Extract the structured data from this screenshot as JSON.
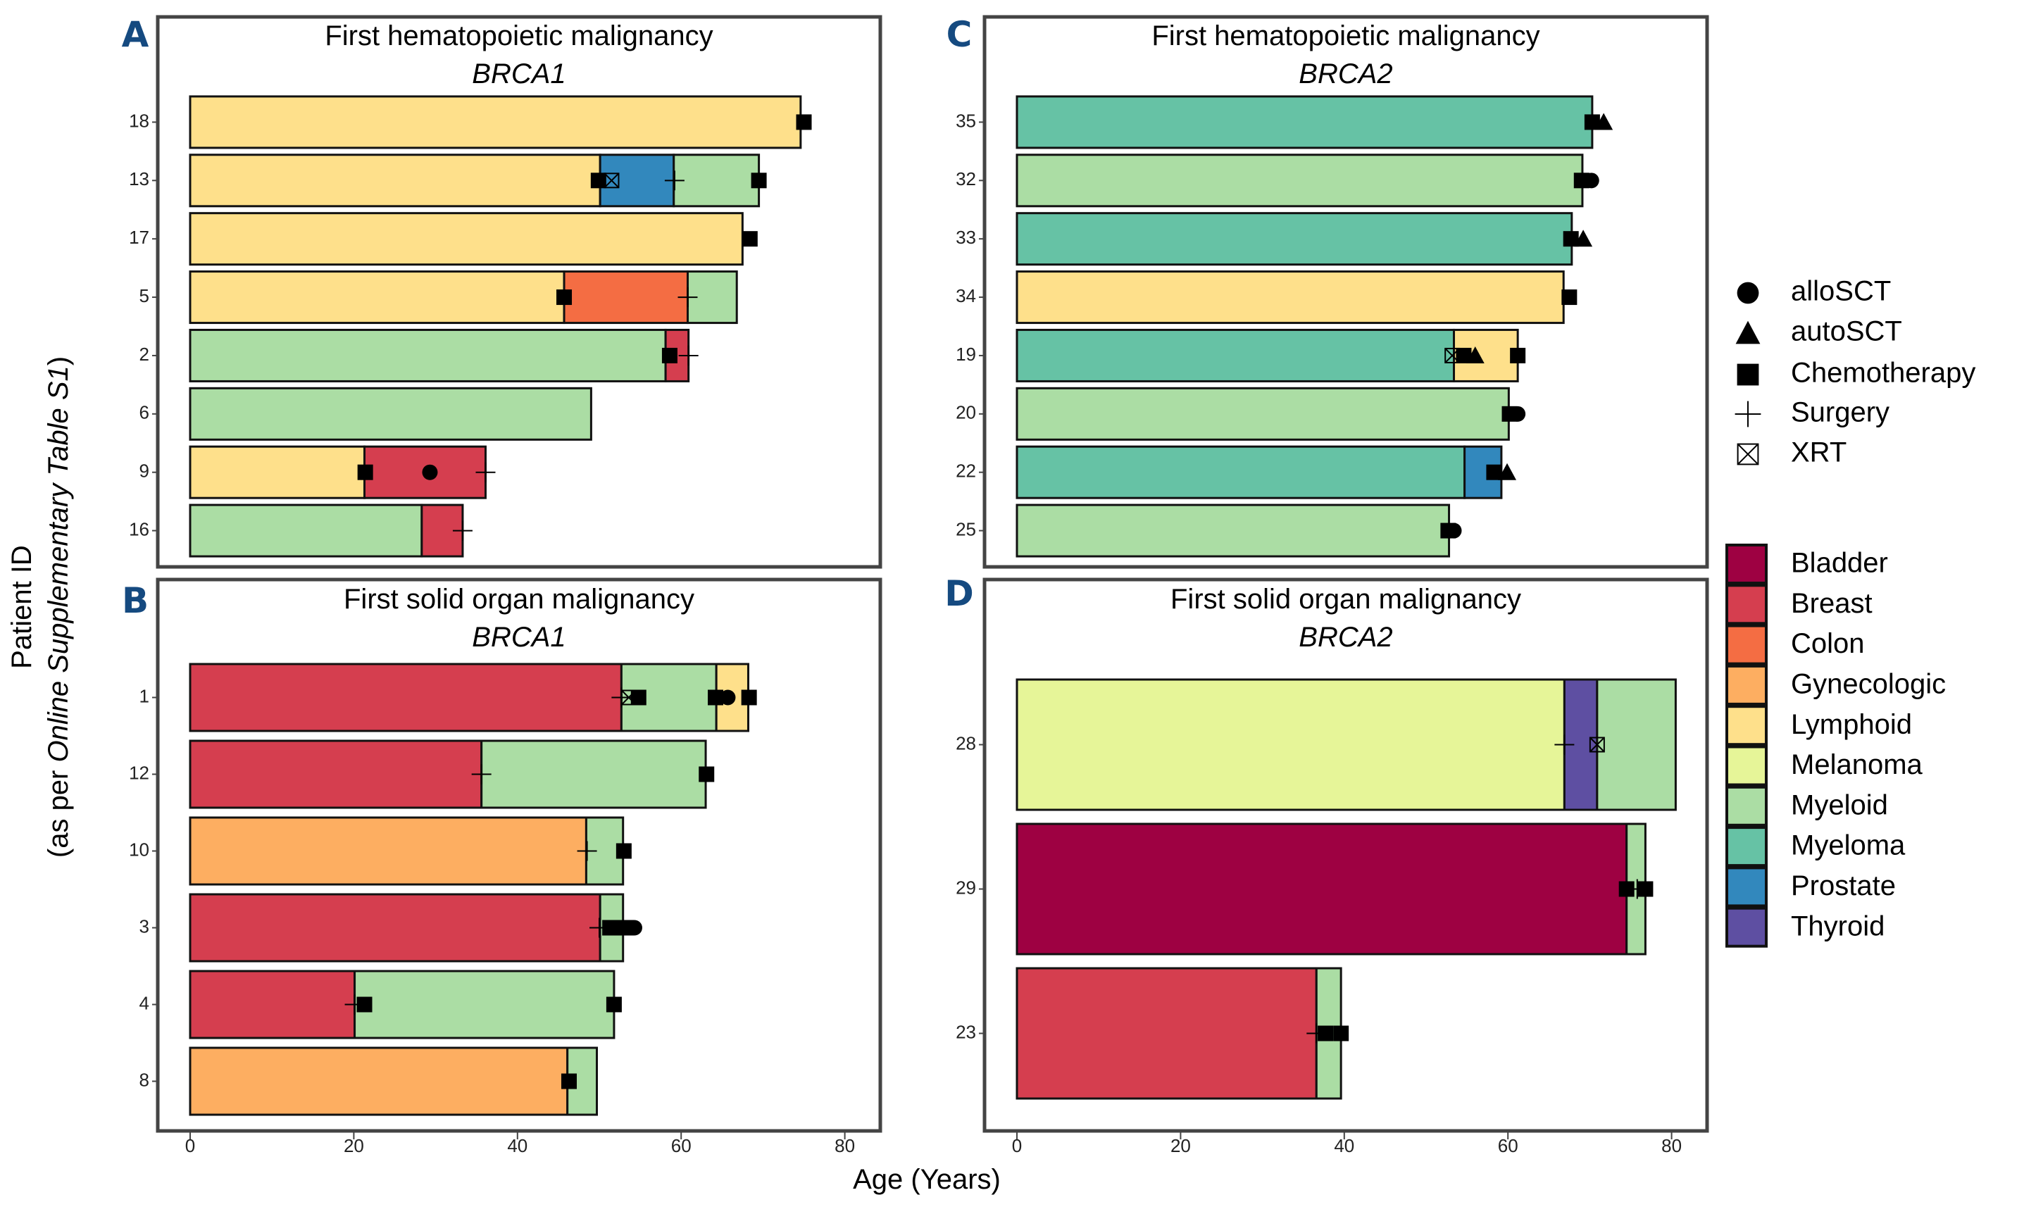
{
  "chart_data": {
    "type": "bar",
    "subtype": "horizontal stacked swimmer plot",
    "xlabel": "Age (Years)",
    "ylabel_line1": "Patient ID",
    "ylabel_line2_prefix": "(as per ",
    "ylabel_line2_italic": "Online Supplementary Table S1",
    "ylabel_line2_suffix": ")",
    "xlim": [
      0,
      84
    ],
    "xticks": [
      0,
      20,
      40,
      60,
      80
    ],
    "grid": false,
    "legend_position": "right",
    "treatment_legend": [
      {
        "key": "alloSCT",
        "label": "alloSCT",
        "shape": "circle"
      },
      {
        "key": "autoSCT",
        "label": "autoSCT",
        "shape": "triangle"
      },
      {
        "key": "chemo",
        "label": "Chemotherapy",
        "shape": "square"
      },
      {
        "key": "surgery",
        "label": "Surgery",
        "shape": "plus"
      },
      {
        "key": "xrt",
        "label": "XRT",
        "shape": "boxed-x"
      }
    ],
    "malignancy_legend": [
      {
        "label": "Bladder",
        "color": "#9E0142"
      },
      {
        "label": "Breast",
        "color": "#D53E4F"
      },
      {
        "label": "Colon",
        "color": "#F46D43"
      },
      {
        "label": "Gynecologic",
        "color": "#FDAE61"
      },
      {
        "label": "Lymphoid",
        "color": "#FEE08B"
      },
      {
        "label": "Melanoma",
        "color": "#E6F598"
      },
      {
        "label": "Myeloid",
        "color": "#ABDDA4"
      },
      {
        "label": "Myeloma",
        "color": "#66C2A5"
      },
      {
        "label": "Prostate",
        "color": "#3288BD"
      },
      {
        "label": "Thyroid",
        "color": "#5E4FA2"
      }
    ],
    "panels": [
      {
        "letter": "A",
        "title": "First hematopoietic malignancy",
        "gene": "BRCA1",
        "patients": [
          {
            "id": "18",
            "segments": [
              {
                "type": "Lymphoid",
                "end": 74.6
              }
            ],
            "events": [
              {
                "t": "chemo",
                "age": 75.0
              }
            ]
          },
          {
            "id": "13",
            "segments": [
              {
                "type": "Lymphoid",
                "end": 50.1
              },
              {
                "type": "Prostate",
                "end": 59.1
              },
              {
                "type": "Myeloid",
                "end": 69.5
              }
            ],
            "events": [
              {
                "t": "chemo",
                "age": 49.9
              },
              {
                "t": "xrt",
                "age": 51.5
              },
              {
                "t": "surgery",
                "age": 59.2
              },
              {
                "t": "chemo",
                "age": 69.5
              }
            ]
          },
          {
            "id": "17",
            "segments": [
              {
                "type": "Lymphoid",
                "end": 67.5
              }
            ],
            "events": [
              {
                "t": "chemo",
                "age": 68.4
              }
            ]
          },
          {
            "id": "5",
            "segments": [
              {
                "type": "Lymphoid",
                "end": 45.7
              },
              {
                "type": "Colon",
                "end": 60.8
              },
              {
                "type": "Myeloid",
                "end": 66.8
              }
            ],
            "events": [
              {
                "t": "chemo",
                "age": 45.7
              },
              {
                "t": "surgery",
                "age": 60.8
              }
            ]
          },
          {
            "id": "2",
            "segments": [
              {
                "type": "Myeloid",
                "end": 58.1
              },
              {
                "type": "Breast",
                "end": 60.9
              }
            ],
            "events": [
              {
                "t": "chemo",
                "age": 58.6
              },
              {
                "t": "surgery",
                "age": 60.9
              }
            ]
          },
          {
            "id": "6",
            "segments": [
              {
                "type": "Myeloid",
                "end": 49.0
              }
            ],
            "events": []
          },
          {
            "id": "9",
            "segments": [
              {
                "type": "Lymphoid",
                "end": 21.3
              },
              {
                "type": "Breast",
                "end": 36.1
              }
            ],
            "events": [
              {
                "t": "chemo",
                "age": 21.4
              },
              {
                "t": "alloSCT",
                "age": 29.3
              },
              {
                "t": "surgery",
                "age": 36.1
              }
            ]
          },
          {
            "id": "16",
            "segments": [
              {
                "type": "Myeloid",
                "end": 28.3
              },
              {
                "type": "Breast",
                "end": 33.3
              }
            ],
            "events": [
              {
                "t": "surgery",
                "age": 33.3
              }
            ]
          }
        ]
      },
      {
        "letter": "B",
        "title": "First solid organ malignancy",
        "gene": "BRCA1",
        "patients": [
          {
            "id": "1",
            "segments": [
              {
                "type": "Breast",
                "end": 52.7
              },
              {
                "type": "Myeloid",
                "end": 64.3
              },
              {
                "type": "Lymphoid",
                "end": 68.2
              }
            ],
            "events": [
              {
                "t": "surgery",
                "age": 52.7
              },
              {
                "t": "xrt",
                "age": 53.6
              },
              {
                "t": "chemo",
                "age": 54.8
              },
              {
                "t": "chemo",
                "age": 64.2
              },
              {
                "t": "alloSCT",
                "age": 65.7
              },
              {
                "t": "chemo",
                "age": 68.3
              }
            ]
          },
          {
            "id": "12",
            "segments": [
              {
                "type": "Breast",
                "end": 35.6
              },
              {
                "type": "Myeloid",
                "end": 63.0
              }
            ],
            "events": [
              {
                "t": "surgery",
                "age": 35.6
              },
              {
                "t": "chemo",
                "age": 63.1
              }
            ]
          },
          {
            "id": "10",
            "segments": [
              {
                "type": "Gynecologic",
                "end": 48.4
              },
              {
                "type": "Myeloid",
                "end": 52.9
              }
            ],
            "events": [
              {
                "t": "surgery",
                "age": 48.5
              },
              {
                "t": "chemo",
                "age": 53.0
              }
            ]
          },
          {
            "id": "3",
            "segments": [
              {
                "type": "Breast",
                "end": 50.1
              },
              {
                "type": "Myeloid",
                "end": 52.9
              }
            ],
            "events": [
              {
                "t": "surgery",
                "age": 50.0
              },
              {
                "t": "chemo",
                "age": 51.3
              },
              {
                "t": "chemo",
                "age": 52.3
              },
              {
                "t": "chemo",
                "age": 53.3
              },
              {
                "t": "alloSCT",
                "age": 54.3
              }
            ]
          },
          {
            "id": "4",
            "segments": [
              {
                "type": "Breast",
                "end": 20.1
              },
              {
                "type": "Myeloid",
                "end": 51.8
              }
            ],
            "events": [
              {
                "t": "surgery",
                "age": 20.1
              },
              {
                "t": "chemo",
                "age": 21.3
              },
              {
                "t": "chemo",
                "age": 51.8
              }
            ]
          },
          {
            "id": "8",
            "segments": [
              {
                "type": "Gynecologic",
                "end": 46.1
              },
              {
                "type": "Myeloid",
                "end": 49.7
              }
            ],
            "events": [
              {
                "t": "chemo",
                "age": 46.3
              }
            ]
          }
        ]
      },
      {
        "letter": "C",
        "title": "First hematopoietic malignancy",
        "gene": "BRCA2",
        "patients": [
          {
            "id": "35",
            "segments": [
              {
                "type": "Myeloma",
                "end": 70.3
              }
            ],
            "events": [
              {
                "t": "chemo",
                "age": 70.3
              },
              {
                "t": "autoSCT",
                "age": 71.7
              }
            ]
          },
          {
            "id": "32",
            "segments": [
              {
                "type": "Myeloid",
                "end": 69.1
              }
            ],
            "events": [
              {
                "t": "chemo",
                "age": 69.0
              },
              {
                "t": "alloSCT",
                "age": 70.2
              }
            ]
          },
          {
            "id": "33",
            "segments": [
              {
                "type": "Myeloma",
                "end": 67.8
              }
            ],
            "events": [
              {
                "t": "chemo",
                "age": 67.7
              },
              {
                "t": "autoSCT",
                "age": 69.2
              }
            ]
          },
          {
            "id": "34",
            "segments": [
              {
                "type": "Lymphoid",
                "end": 66.8
              }
            ],
            "events": [
              {
                "t": "chemo",
                "age": 67.5
              }
            ]
          },
          {
            "id": "19",
            "segments": [
              {
                "type": "Myeloma",
                "end": 53.4
              },
              {
                "type": "Lymphoid",
                "end": 61.2
              }
            ],
            "events": [
              {
                "t": "xrt",
                "age": 53.2
              },
              {
                "t": "chemo",
                "age": 54.6
              },
              {
                "t": "autoSCT",
                "age": 56.0
              },
              {
                "t": "chemo",
                "age": 61.2
              }
            ]
          },
          {
            "id": "20",
            "segments": [
              {
                "type": "Myeloid",
                "end": 60.1
              }
            ],
            "events": [
              {
                "t": "chemo",
                "age": 60.2
              },
              {
                "t": "alloSCT",
                "age": 61.2
              }
            ]
          },
          {
            "id": "22",
            "segments": [
              {
                "type": "Myeloma",
                "end": 54.7
              },
              {
                "type": "Prostate",
                "end": 59.2
              }
            ],
            "events": [
              {
                "t": "chemo",
                "age": 58.3
              },
              {
                "t": "autoSCT",
                "age": 59.9
              }
            ]
          },
          {
            "id": "25",
            "segments": [
              {
                "type": "Myeloid",
                "end": 52.8
              }
            ],
            "events": [
              {
                "t": "chemo",
                "age": 52.7
              },
              {
                "t": "alloSCT",
                "age": 53.4
              }
            ]
          }
        ]
      },
      {
        "letter": "D",
        "title": "First solid organ malignancy",
        "gene": "BRCA2",
        "patients": [
          {
            "id": "28",
            "segments": [
              {
                "type": "Melanoma",
                "end": 66.9
              },
              {
                "type": "Thyroid",
                "end": 70.9
              },
              {
                "type": "Myeloid",
                "end": 80.5
              }
            ],
            "events": [
              {
                "t": "surgery",
                "age": 66.9
              },
              {
                "t": "xrt",
                "age": 70.9
              }
            ]
          },
          {
            "id": "29",
            "segments": [
              {
                "type": "Bladder",
                "end": 74.5
              },
              {
                "type": "Myeloid",
                "end": 76.8
              }
            ],
            "events": [
              {
                "t": "chemo",
                "age": 74.5
              },
              {
                "t": "surgery",
                "age": 75.8
              },
              {
                "t": "chemo",
                "age": 76.8
              }
            ]
          },
          {
            "id": "23",
            "segments": [
              {
                "type": "Breast",
                "end": 36.6
              },
              {
                "type": "Myeloid",
                "end": 39.6
              }
            ],
            "events": [
              {
                "t": "surgery",
                "age": 36.6
              },
              {
                "t": "chemo",
                "age": 37.7
              },
              {
                "t": "chemo",
                "age": 39.6
              }
            ]
          }
        ]
      }
    ]
  }
}
